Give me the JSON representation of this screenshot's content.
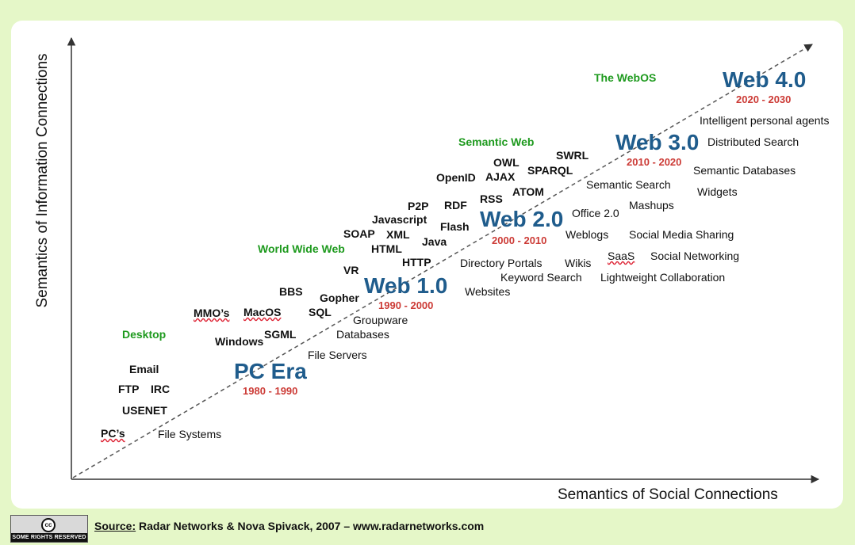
{
  "axes": {
    "x_label": "Semantics of Social Connections",
    "y_label": "Semantics of Information Connections"
  },
  "eras": [
    {
      "name": "PC Era",
      "range": "1980 - 1990"
    },
    {
      "name": "Web 1.0",
      "range": "1990 - 2000"
    },
    {
      "name": "Web 2.0",
      "range": "2000 - 2010"
    },
    {
      "name": "Web 3.0",
      "range": "2010 - 2020"
    },
    {
      "name": "Web 4.0",
      "range": "2020 - 2030"
    }
  ],
  "categories": {
    "desktop": "Desktop",
    "www": "World Wide Web",
    "semantic_web": "Semantic Web",
    "webos": "The WebOS"
  },
  "information_terms": {
    "pcs": "PC’s",
    "usenet": "USENET",
    "ftp": "FTP",
    "irc": "IRC",
    "email": "Email",
    "windows": "Windows",
    "mmos": "MMO’s",
    "macos": "MacOS",
    "sgml": "SGML",
    "bbs": "BBS",
    "sql": "SQL",
    "gopher": "Gopher",
    "vr": "VR",
    "soap": "SOAP",
    "html": "HTML",
    "xml": "XML",
    "javascript": "Javascript",
    "p2p": "P2P",
    "java": "Java",
    "http": "HTTP",
    "flash": "Flash",
    "rdf": "RDF",
    "rss": "RSS",
    "openid": "OpenID",
    "ajax": "AJAX",
    "owl": "OWL",
    "atom": "ATOM",
    "sparql": "SPARQL",
    "swrl": "SWRL"
  },
  "social_terms": {
    "file_systems": "File Systems",
    "file_servers": "File Servers",
    "databases": "Databases",
    "groupware": "Groupware",
    "websites": "Websites",
    "keyword_search": "Keyword Search",
    "directory_portals": "Directory Portals",
    "wikis": "Wikis",
    "lightweight_collaboration": "Lightweight Collaboration",
    "saas": "SaaS",
    "social_networking": "Social Networking",
    "weblogs": "Weblogs",
    "social_media_sharing": "Social Media Sharing",
    "office20": "Office 2.0",
    "mashups": "Mashups",
    "semantic_search": "Semantic Search",
    "widgets": "Widgets",
    "semantic_databases": "Semantic Databases",
    "distributed_search": "Distributed Search",
    "intelligent_agents": "Intelligent personal agents"
  },
  "footer": {
    "source_label": "Source:",
    "source_text": " Radar Networks & Nova Spivack, 2007 – www.radarnetworks.com",
    "cc_symbol": "cc",
    "cc_text": "SOME RIGHTS RESERVED"
  },
  "colors": {
    "background": "#e5f7c8",
    "era": "#1f5c8c",
    "range": "#cc3b36",
    "category": "#1e9a1e"
  }
}
